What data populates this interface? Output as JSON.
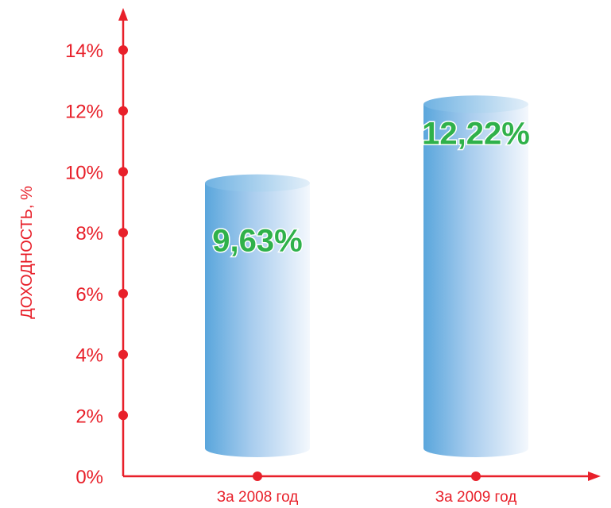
{
  "chart_data": {
    "type": "bar",
    "categories": [
      "За 2008 год",
      "За 2009 год"
    ],
    "values": [
      9.63,
      12.22
    ],
    "data_labels": [
      "9,63%",
      "12,22%"
    ],
    "title": "",
    "xlabel": "",
    "ylabel": "ДОХОДНОСТЬ, %",
    "ylim": [
      0,
      14
    ],
    "yticks": [
      {
        "value": 0,
        "label": "0%"
      },
      {
        "value": 2,
        "label": "2%"
      },
      {
        "value": 4,
        "label": "4%"
      },
      {
        "value": 6,
        "label": "6%"
      },
      {
        "value": 8,
        "label": "8%"
      },
      {
        "value": 10,
        "label": "10%"
      },
      {
        "value": 12,
        "label": "12%"
      },
      {
        "value": 14,
        "label": "14%"
      }
    ],
    "grid": false,
    "legend": "none",
    "bar_style": "3d-cylinder",
    "colors": {
      "axis": "#e8202a",
      "data_label": "#2fb14a",
      "data_label_outline": "#ffffff",
      "bar_dark": "#5aa6dc",
      "bar_light": "#f4f8fd"
    }
  }
}
